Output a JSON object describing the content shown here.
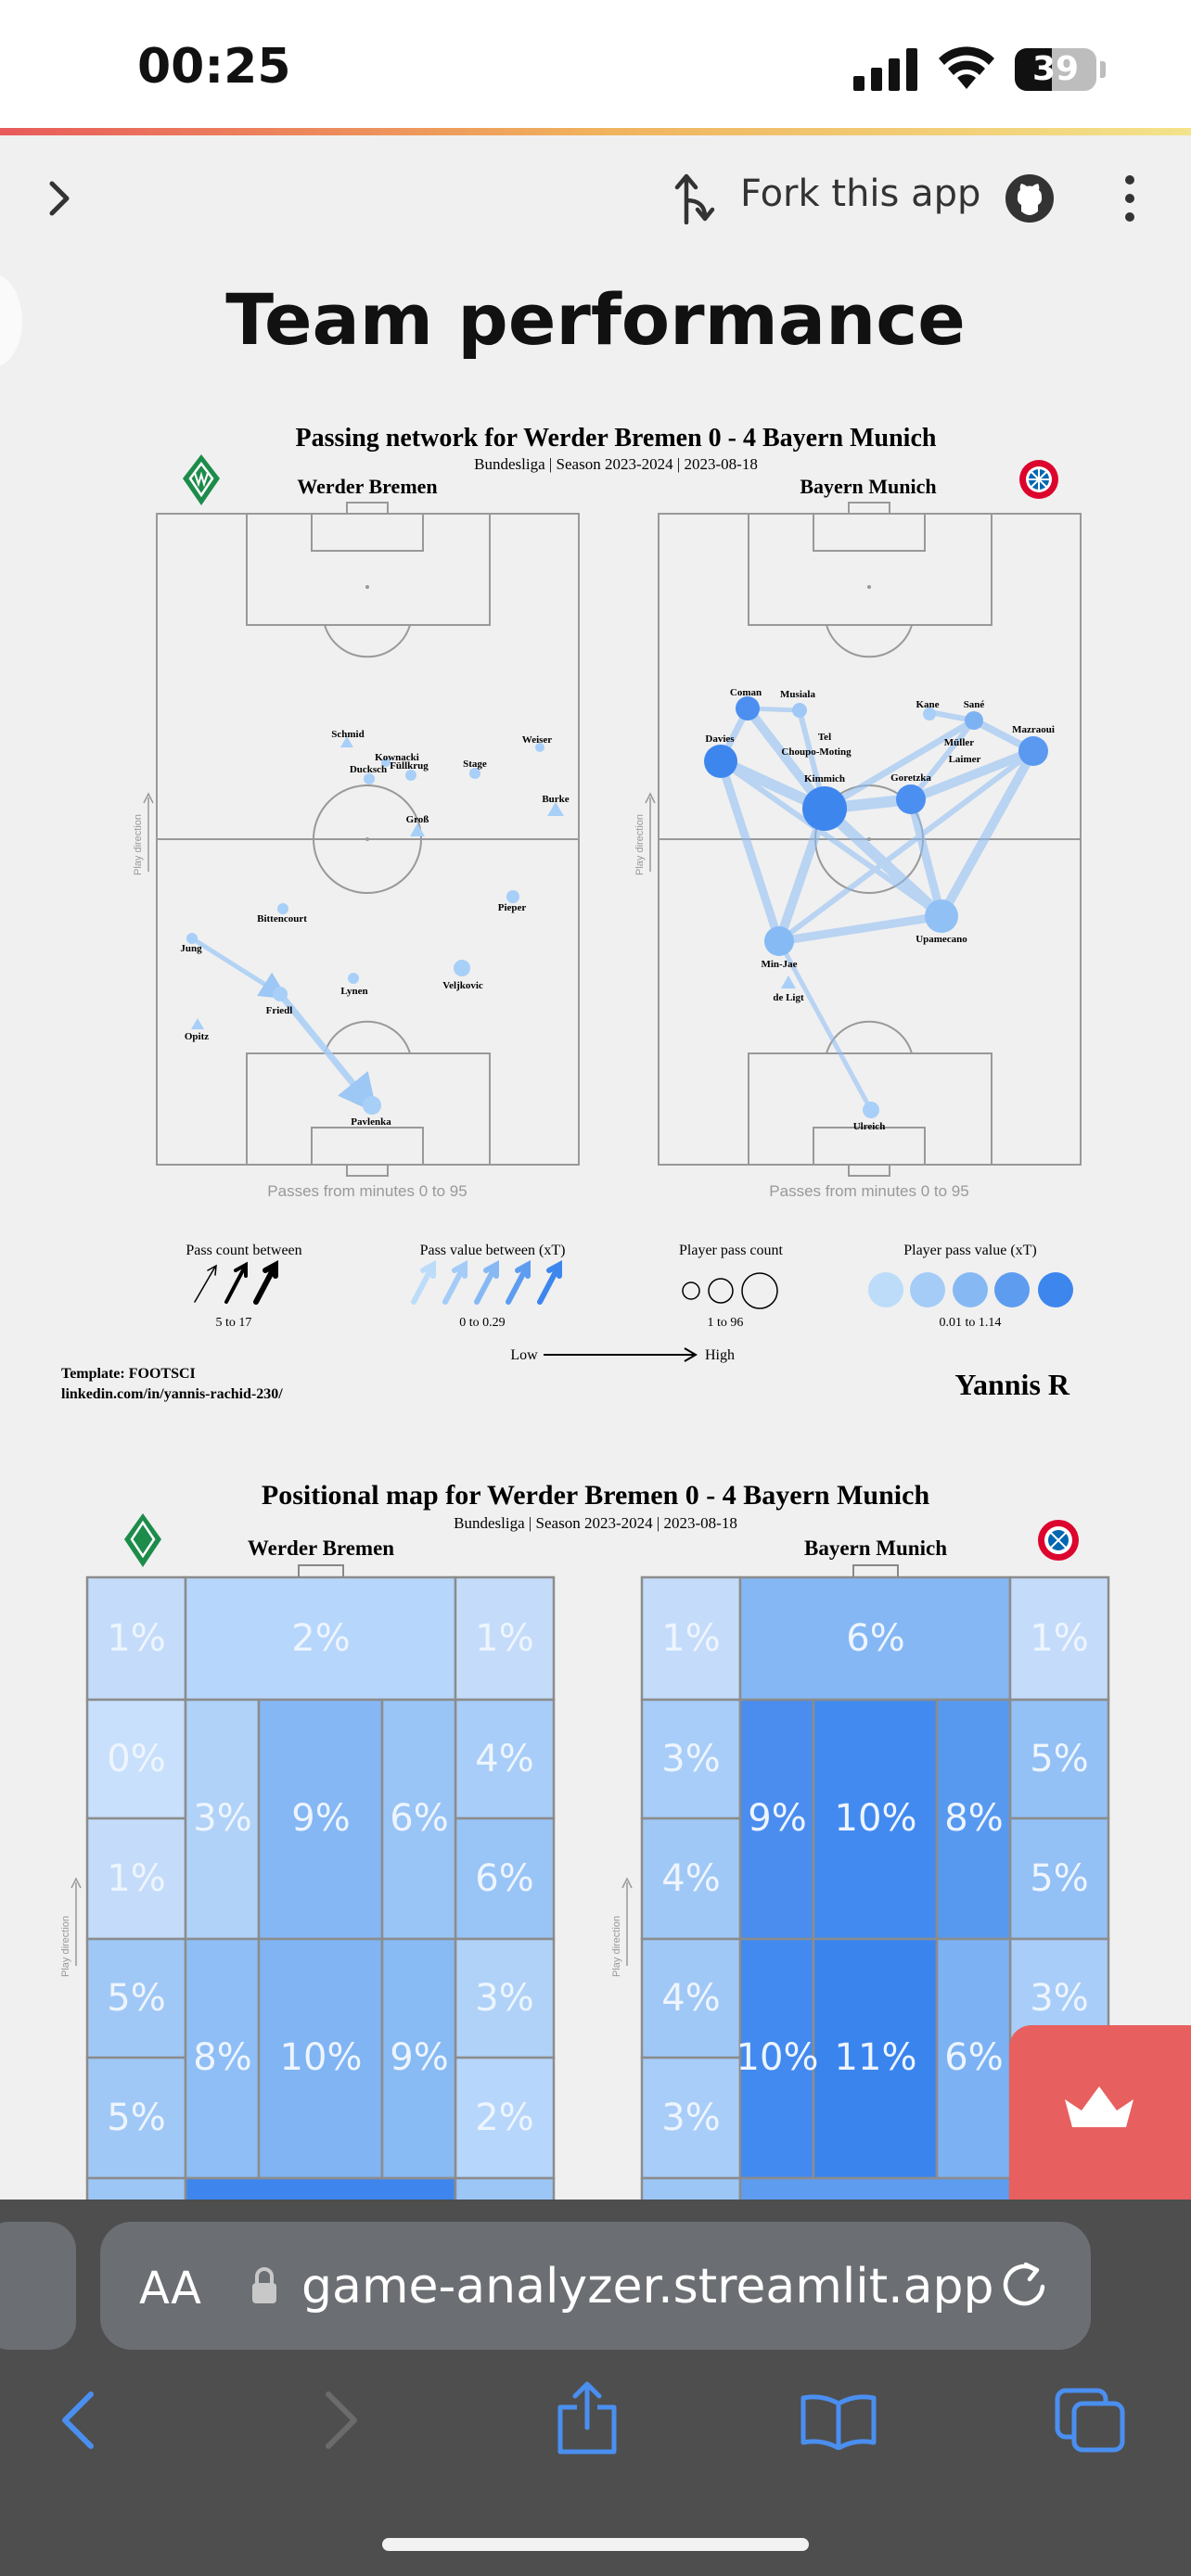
{
  "status_bar": {
    "time": "00:25",
    "battery": "39"
  },
  "app_bar": {
    "fork_label": "Fork this app"
  },
  "page": {
    "title": "Team performance"
  },
  "passing_network": {
    "title": "Passing network for Werder Bremen 0 - 4 Bayern Munich",
    "subtitle": "Bundesliga | Season 2023-2024 | 2023-08-18",
    "home_team": "Werder Bremen",
    "away_team": "Bayern Munich",
    "play_direction": "Play direction",
    "home_caption": "Passes from minutes 0 to 95",
    "away_caption": "Passes from minutes 0 to 95",
    "home_players": [
      "Schmid",
      "Kownacki",
      "Ducksch",
      "Füllkrug",
      "Stage",
      "Weiser",
      "Burke",
      "Groß",
      "Bittencourt",
      "Pieper",
      "Jung",
      "Friedl",
      "Lynen",
      "Veljkovic",
      "Opitz",
      "Pavlenka"
    ],
    "away_players": [
      "Coman",
      "Musiala",
      "Kane",
      "Sané",
      "Mazraoui",
      "Davies",
      "Tel",
      "Choupo-Moting",
      "Müller",
      "Laimer",
      "Kimmich",
      "Goretzka",
      "Upamecano",
      "Min-Jae",
      "de Ligt",
      "Ulreich"
    ]
  },
  "legend": {
    "pass_count_label": "Pass count between",
    "pass_count_range": "5 to 17",
    "pass_value_label": "Pass value between (xT)",
    "pass_value_range": "0 to 0.29",
    "player_count_label": "Player pass count",
    "player_count_range": "1 to 96",
    "player_value_label": "Player pass value (xT)",
    "player_value_range": "0.01 to 1.14",
    "low": "Low",
    "high": "High",
    "template": "Template: FOOTSCI",
    "linkedin": "linkedin.com/in/yannis-rachid-230/",
    "author": "Yannis R"
  },
  "positional_map": {
    "title": "Positional map for Werder Bremen 0 - 4 Bayern Munich",
    "subtitle": "Bundesliga | Season 2023-2024 | 2023-08-18",
    "home_team": "Werder Bremen",
    "away_team": "Bayern Munich",
    "play_direction": "Play direction",
    "home_cells": {
      "top_left": "1%",
      "top_mid": "2%",
      "top_right": "1%",
      "r1_left": "0%",
      "r1_right": "4%",
      "r2_left": "1%",
      "r2_right": "6%",
      "mid_a": "3%",
      "mid_b": "9%",
      "mid_c": "6%",
      "r3_left": "5%",
      "r3_right": "3%",
      "r4_left": "5%",
      "r4_right": "2%",
      "low_a": "8%",
      "low_b": "10%",
      "low_c": "9%"
    },
    "away_cells": {
      "top_left": "1%",
      "top_mid": "6%",
      "top_right": "1%",
      "r1_left": "3%",
      "r1_right": "5%",
      "r2_left": "4%",
      "r2_right": "5%",
      "mid_a": "9%",
      "mid_b": "10%",
      "mid_c": "8%",
      "r3_left": "4%",
      "r3_right": "3%",
      "r4_left": "3%",
      "r4_right": "",
      "low_a": "10%",
      "low_b": "11%",
      "low_c": "6%"
    }
  },
  "browser": {
    "aa": "AA",
    "url": "game-analyzer.streamlit.app"
  }
}
